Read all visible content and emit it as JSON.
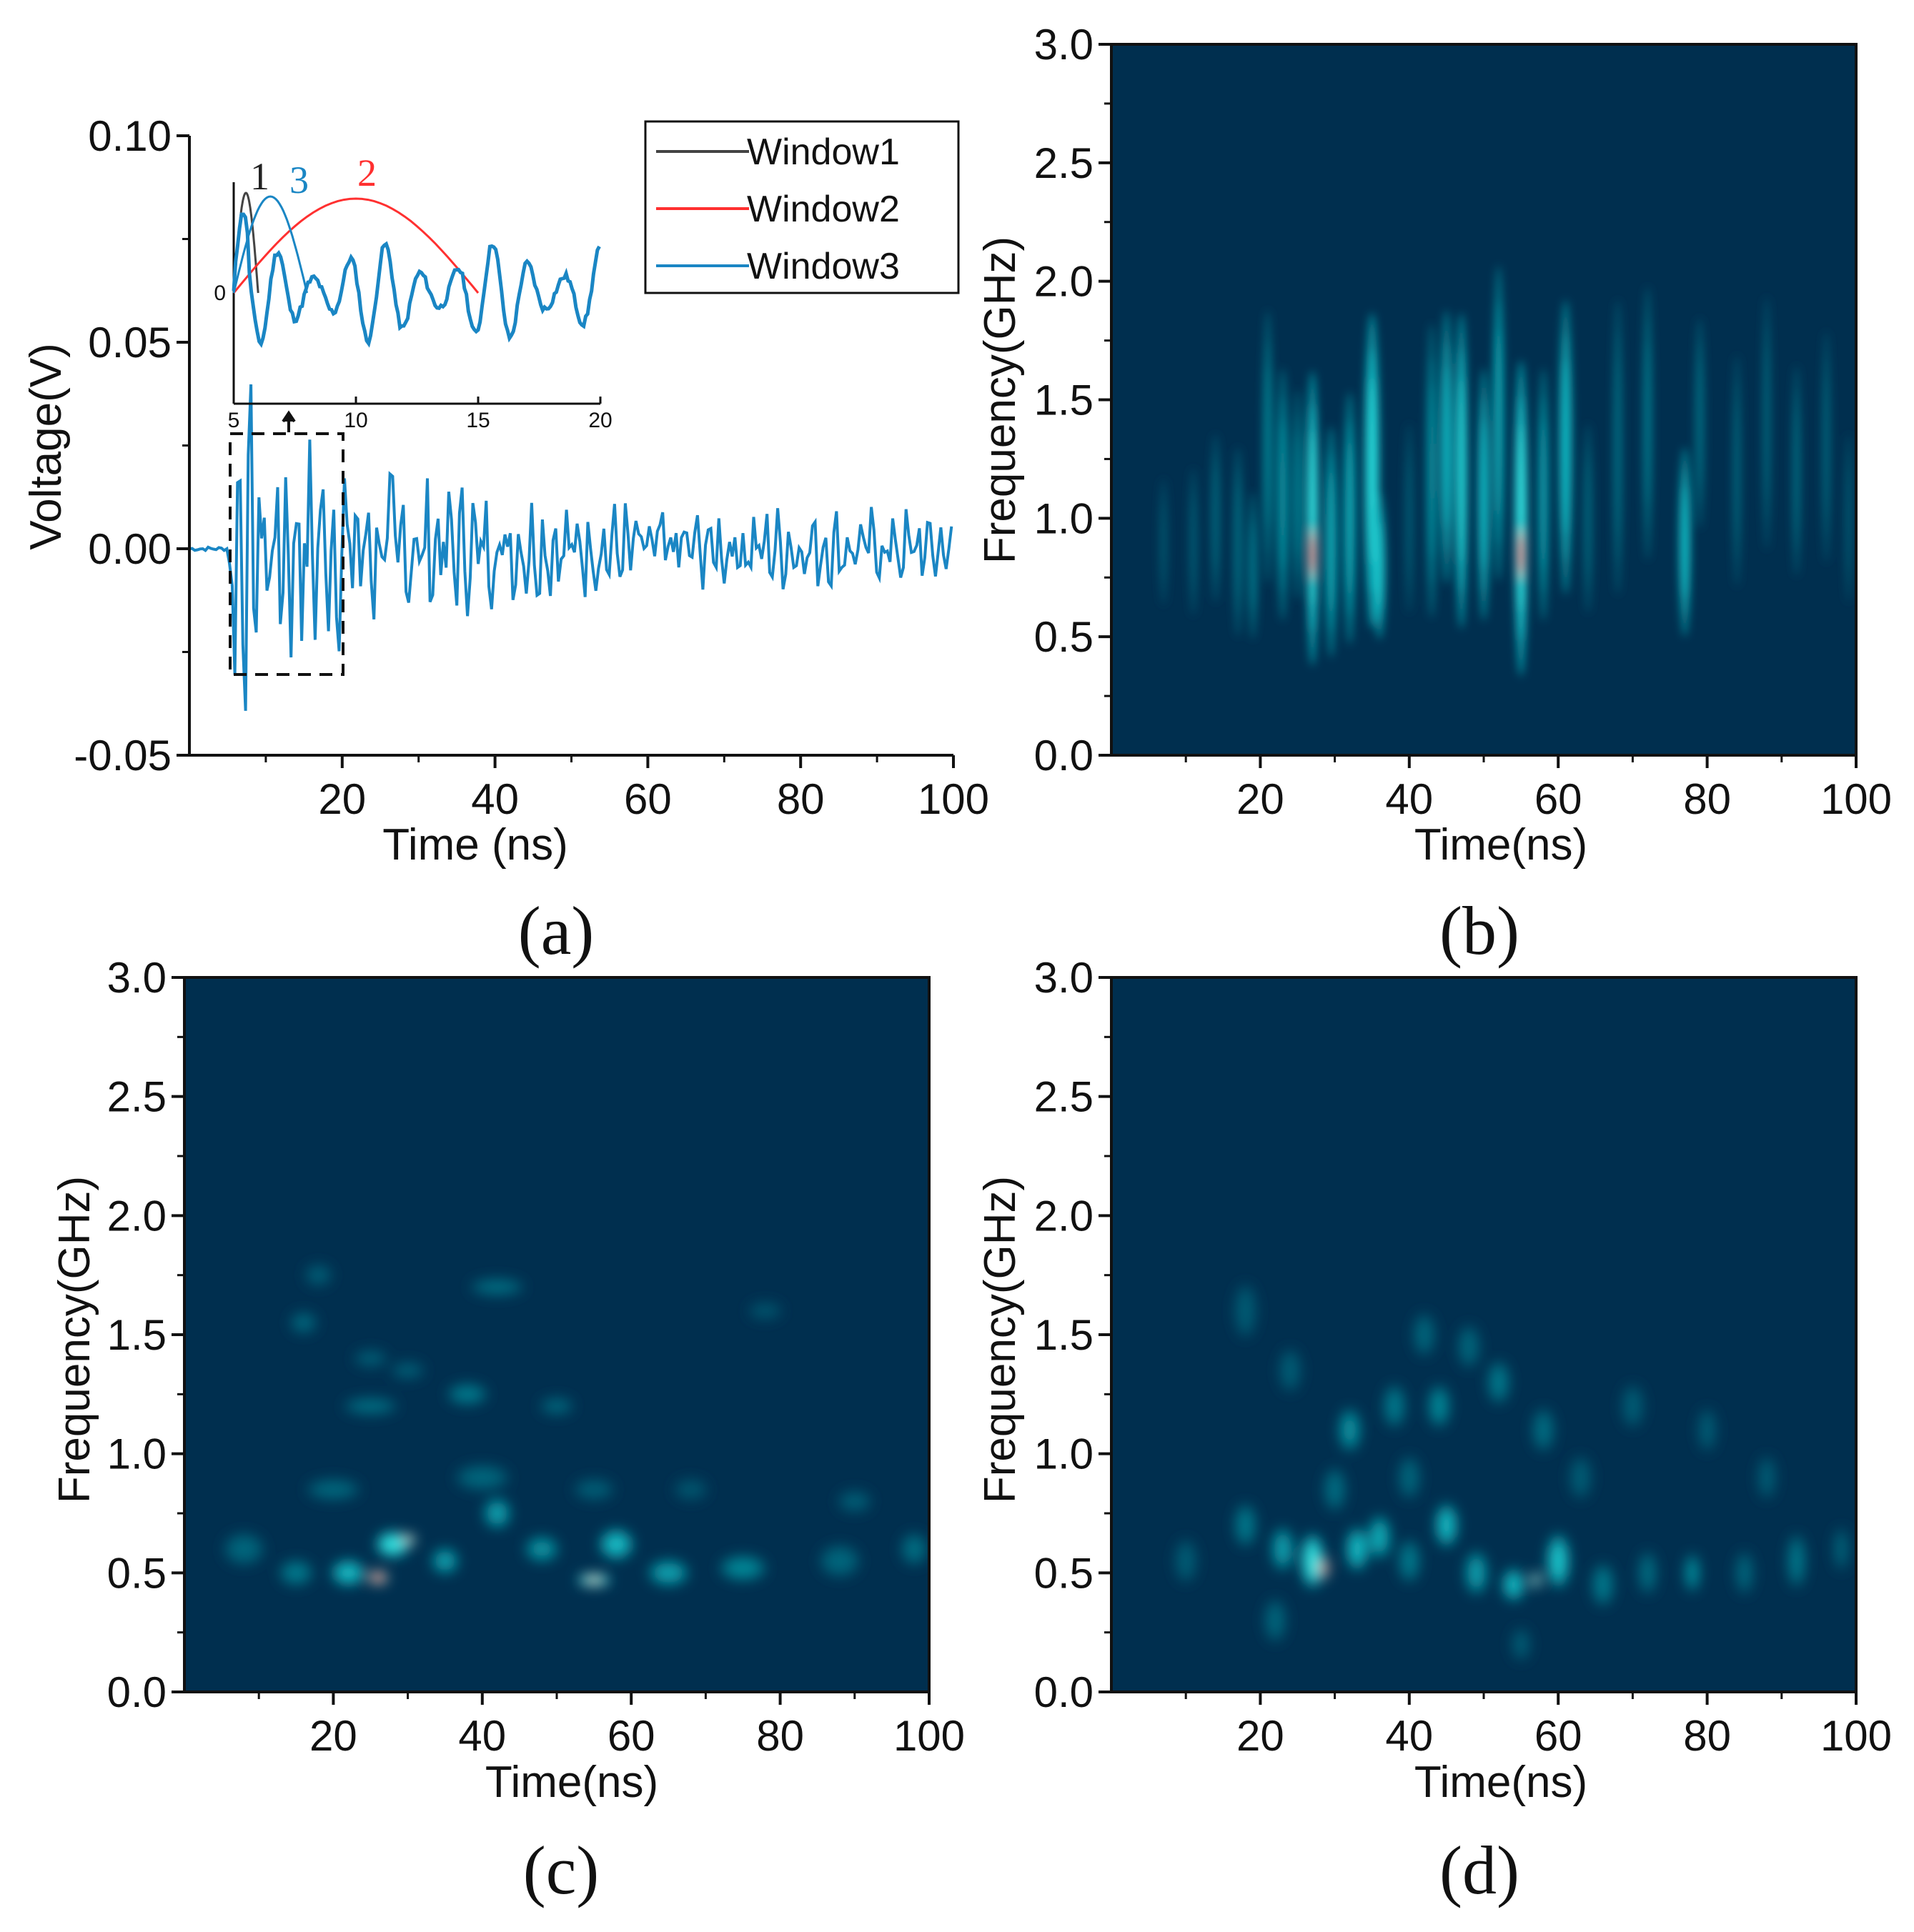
{
  "colors": {
    "background": "#002f4f",
    "glow": "#1bd3d8",
    "hot": "#ff2a1e",
    "warm": "#f6c0a8",
    "window1": "#444444",
    "window2": "#ff3030",
    "window3": "#1a86c4"
  },
  "chart_data": [
    {
      "panel": "(a)",
      "type": "line",
      "xlabel": "Time (ns)",
      "ylabel": "Voltage(V)",
      "xlim": [
        0,
        100
      ],
      "ylim": [
        -0.05,
        0.1
      ],
      "xticks": [
        "20",
        "40",
        "60",
        "80",
        "100"
      ],
      "yticks": [
        "-0.05",
        "0.00",
        "0.05",
        "0.10"
      ],
      "series": [
        {
          "name": "Window3",
          "description_values": {
            "signal_onset_ns": 5,
            "peak_max_V": 0.04,
            "peak_min_V": -0.04,
            "tail_amplitude_V": 0.01
          }
        }
      ],
      "legend": [
        "Window1",
        "Window2",
        "Window3"
      ],
      "inset": {
        "xlim": [
          5,
          20
        ],
        "xticks": [
          "5",
          "10",
          "15",
          "20"
        ],
        "ytick": "0",
        "window_labels": [
          "1",
          "3",
          "2"
        ],
        "window_ranges_ns": [
          [
            5,
            6
          ],
          [
            5,
            8
          ],
          [
            5,
            15
          ]
        ]
      },
      "dashed_box_x_ns": [
        5,
        20
      ]
    },
    {
      "panel": "(b)",
      "type": "heatmap",
      "xlabel": "Time(ns)",
      "ylabel": "Frequency(GHz)",
      "xlim": [
        0,
        100
      ],
      "ylim": [
        0,
        3.0
      ],
      "xticks": [
        "20",
        "40",
        "60",
        "80",
        "100"
      ],
      "yticks": [
        "0.0",
        "0.5",
        "1.0",
        "1.5",
        "2.0",
        "2.5",
        "3.0"
      ],
      "blobs": [
        {
          "t": 7,
          "f": 0.9,
          "w": 0.7,
          "h": 0.6,
          "v": 0.25
        },
        {
          "t": 11,
          "f": 0.9,
          "w": 0.7,
          "h": 0.7,
          "v": 0.3
        },
        {
          "t": 14,
          "f": 1.0,
          "w": 0.8,
          "h": 0.8,
          "v": 0.35
        },
        {
          "t": 17,
          "f": 0.9,
          "w": 0.8,
          "h": 0.9,
          "v": 0.4
        },
        {
          "t": 19,
          "f": 0.8,
          "w": 0.8,
          "h": 0.7,
          "v": 0.45
        },
        {
          "t": 21,
          "f": 1.3,
          "w": 0.8,
          "h": 1.3,
          "v": 0.5
        },
        {
          "t": 23,
          "f": 1.1,
          "w": 1.0,
          "h": 1.2,
          "v": 0.55
        },
        {
          "t": 25,
          "f": 1.1,
          "w": 0.8,
          "h": 1.0,
          "v": 0.5
        },
        {
          "t": 27,
          "f": 1.0,
          "w": 1.0,
          "h": 1.4,
          "v": 0.85
        },
        {
          "t": 27,
          "f": 0.85,
          "w": 0.3,
          "h": 0.35,
          "v": 1.0
        },
        {
          "t": 29.5,
          "f": 0.9,
          "w": 1.0,
          "h": 1.1,
          "v": 0.65
        },
        {
          "t": 32,
          "f": 1.0,
          "w": 1.0,
          "h": 1.2,
          "v": 0.65
        },
        {
          "t": 35,
          "f": 1.2,
          "w": 1.3,
          "h": 1.5,
          "v": 0.8
        },
        {
          "t": 36,
          "f": 0.8,
          "w": 1.0,
          "h": 0.7,
          "v": 0.75
        },
        {
          "t": 40,
          "f": 1.0,
          "w": 0.7,
          "h": 0.9,
          "v": 0.3
        },
        {
          "t": 43,
          "f": 1.2,
          "w": 0.9,
          "h": 1.4,
          "v": 0.55
        },
        {
          "t": 45,
          "f": 1.3,
          "w": 1.0,
          "h": 1.3,
          "v": 0.7
        },
        {
          "t": 47,
          "f": 1.2,
          "w": 1.0,
          "h": 1.5,
          "v": 0.8
        },
        {
          "t": 50,
          "f": 1.1,
          "w": 1.0,
          "h": 1.2,
          "v": 0.7
        },
        {
          "t": 52,
          "f": 1.4,
          "w": 0.9,
          "h": 1.5,
          "v": 0.65
        },
        {
          "t": 55,
          "f": 1.0,
          "w": 1.1,
          "h": 1.5,
          "v": 0.85
        },
        {
          "t": 55,
          "f": 0.85,
          "w": 0.3,
          "h": 0.35,
          "v": 1.0
        },
        {
          "t": 58,
          "f": 1.1,
          "w": 0.9,
          "h": 1.2,
          "v": 0.6
        },
        {
          "t": 61,
          "f": 1.3,
          "w": 1.1,
          "h": 1.4,
          "v": 0.7
        },
        {
          "t": 64,
          "f": 1.0,
          "w": 0.8,
          "h": 0.9,
          "v": 0.35
        },
        {
          "t": 68,
          "f": 1.3,
          "w": 0.8,
          "h": 1.4,
          "v": 0.4
        },
        {
          "t": 72,
          "f": 1.4,
          "w": 0.8,
          "h": 1.3,
          "v": 0.45
        },
        {
          "t": 77,
          "f": 0.9,
          "w": 1.0,
          "h": 0.9,
          "v": 0.7
        },
        {
          "t": 79,
          "f": 1.4,
          "w": 0.8,
          "h": 1.0,
          "v": 0.4
        },
        {
          "t": 84,
          "f": 1.2,
          "w": 0.7,
          "h": 1.1,
          "v": 0.35
        },
        {
          "t": 88,
          "f": 1.4,
          "w": 0.7,
          "h": 1.2,
          "v": 0.35
        },
        {
          "t": 92,
          "f": 1.2,
          "w": 0.7,
          "h": 1.0,
          "v": 0.4
        },
        {
          "t": 96,
          "f": 1.3,
          "w": 0.7,
          "h": 1.1,
          "v": 0.35
        },
        {
          "t": 99,
          "f": 1.0,
          "w": 0.6,
          "h": 0.8,
          "v": 0.3
        }
      ]
    },
    {
      "panel": "(c)",
      "type": "heatmap",
      "xlabel": "Time(ns)",
      "ylabel": "Frequency(GHz)",
      "xlim": [
        0,
        100
      ],
      "ylim": [
        0,
        3.0
      ],
      "xticks": [
        "20",
        "40",
        "60",
        "80",
        "100"
      ],
      "yticks": [
        "0.0",
        "0.5",
        "1.0",
        "1.5",
        "2.0",
        "2.5",
        "3.0"
      ],
      "blobs": [
        {
          "t": 8,
          "f": 0.6,
          "w": 6,
          "h": 0.15,
          "v": 0.35
        },
        {
          "t": 15,
          "f": 0.5,
          "w": 5,
          "h": 0.12,
          "v": 0.45
        },
        {
          "t": 22,
          "f": 0.5,
          "w": 5,
          "h": 0.12,
          "v": 0.7
        },
        {
          "t": 26,
          "f": 0.48,
          "w": 3,
          "h": 0.06,
          "v": 1.0
        },
        {
          "t": 28,
          "f": 0.62,
          "w": 5,
          "h": 0.12,
          "v": 0.85
        },
        {
          "t": 30,
          "f": 0.64,
          "w": 2.5,
          "h": 0.05,
          "v": 0.92
        },
        {
          "t": 35,
          "f": 0.55,
          "w": 4,
          "h": 0.12,
          "v": 0.6
        },
        {
          "t": 42,
          "f": 0.75,
          "w": 4,
          "h": 0.14,
          "v": 0.6
        },
        {
          "t": 48,
          "f": 0.6,
          "w": 5,
          "h": 0.12,
          "v": 0.55
        },
        {
          "t": 55,
          "f": 0.47,
          "w": 5,
          "h": 0.06,
          "v": 0.9
        },
        {
          "t": 58,
          "f": 0.62,
          "w": 5,
          "h": 0.14,
          "v": 0.7
        },
        {
          "t": 65,
          "f": 0.5,
          "w": 6,
          "h": 0.12,
          "v": 0.6
        },
        {
          "t": 75,
          "f": 0.52,
          "w": 7,
          "h": 0.12,
          "v": 0.5
        },
        {
          "t": 88,
          "f": 0.55,
          "w": 6,
          "h": 0.15,
          "v": 0.35
        },
        {
          "t": 98,
          "f": 0.6,
          "w": 4,
          "h": 0.15,
          "v": 0.4
        },
        {
          "t": 20,
          "f": 0.85,
          "w": 8,
          "h": 0.1,
          "v": 0.35
        },
        {
          "t": 40,
          "f": 0.9,
          "w": 8,
          "h": 0.12,
          "v": 0.35
        },
        {
          "t": 55,
          "f": 0.85,
          "w": 6,
          "h": 0.1,
          "v": 0.3
        },
        {
          "t": 25,
          "f": 1.2,
          "w": 8,
          "h": 0.08,
          "v": 0.4
        },
        {
          "t": 38,
          "f": 1.25,
          "w": 6,
          "h": 0.1,
          "v": 0.45
        },
        {
          "t": 50,
          "f": 1.2,
          "w": 5,
          "h": 0.08,
          "v": 0.35
        },
        {
          "t": 30,
          "f": 1.35,
          "w": 5,
          "h": 0.08,
          "v": 0.3
        },
        {
          "t": 42,
          "f": 1.7,
          "w": 8,
          "h": 0.08,
          "v": 0.4
        },
        {
          "t": 16,
          "f": 1.55,
          "w": 4,
          "h": 0.1,
          "v": 0.35
        },
        {
          "t": 18,
          "f": 1.75,
          "w": 4,
          "h": 0.1,
          "v": 0.3
        },
        {
          "t": 25,
          "f": 1.4,
          "w": 5,
          "h": 0.08,
          "v": 0.3
        },
        {
          "t": 78,
          "f": 1.6,
          "w": 5,
          "h": 0.08,
          "v": 0.25
        },
        {
          "t": 90,
          "f": 0.8,
          "w": 5,
          "h": 0.1,
          "v": 0.3
        },
        {
          "t": 68,
          "f": 0.85,
          "w": 5,
          "h": 0.1,
          "v": 0.25
        }
      ]
    },
    {
      "panel": "(d)",
      "type": "heatmap",
      "xlabel": "Time(ns)",
      "ylabel": "Frequency(GHz)",
      "xlim": [
        0,
        100
      ],
      "ylim": [
        0,
        3.0
      ],
      "xticks": [
        "20",
        "40",
        "60",
        "80",
        "100"
      ],
      "yticks": [
        "0.0",
        "0.5",
        "1.0",
        "1.5",
        "2.0",
        "2.5",
        "3.0"
      ],
      "blobs": [
        {
          "t": 10,
          "f": 0.55,
          "w": 3,
          "h": 0.2,
          "v": 0.3
        },
        {
          "t": 18,
          "f": 0.7,
          "w": 3,
          "h": 0.2,
          "v": 0.45
        },
        {
          "t": 23,
          "f": 0.6,
          "w": 3,
          "h": 0.2,
          "v": 0.6
        },
        {
          "t": 27,
          "f": 0.55,
          "w": 3,
          "h": 0.25,
          "v": 0.85
        },
        {
          "t": 28.5,
          "f": 0.52,
          "w": 1.3,
          "h": 0.1,
          "v": 1.0
        },
        {
          "t": 33,
          "f": 0.6,
          "w": 3,
          "h": 0.2,
          "v": 0.7
        },
        {
          "t": 36,
          "f": 0.65,
          "w": 3,
          "h": 0.2,
          "v": 0.65
        },
        {
          "t": 40,
          "f": 0.55,
          "w": 3,
          "h": 0.2,
          "v": 0.45
        },
        {
          "t": 45,
          "f": 0.7,
          "w": 3,
          "h": 0.2,
          "v": 0.7
        },
        {
          "t": 49,
          "f": 0.5,
          "w": 3,
          "h": 0.2,
          "v": 0.6
        },
        {
          "t": 54,
          "f": 0.45,
          "w": 3,
          "h": 0.15,
          "v": 0.7
        },
        {
          "t": 57,
          "f": 0.47,
          "w": 1.3,
          "h": 0.08,
          "v": 0.88
        },
        {
          "t": 60,
          "f": 0.55,
          "w": 3,
          "h": 0.25,
          "v": 0.75
        },
        {
          "t": 66,
          "f": 0.45,
          "w": 3,
          "h": 0.2,
          "v": 0.45
        },
        {
          "t": 72,
          "f": 0.5,
          "w": 2.5,
          "h": 0.2,
          "v": 0.4
        },
        {
          "t": 78,
          "f": 0.5,
          "w": 2,
          "h": 0.18,
          "v": 0.55
        },
        {
          "t": 85,
          "f": 0.5,
          "w": 2.5,
          "h": 0.2,
          "v": 0.35
        },
        {
          "t": 92,
          "f": 0.55,
          "w": 2.5,
          "h": 0.25,
          "v": 0.45
        },
        {
          "t": 98,
          "f": 0.6,
          "w": 2,
          "h": 0.2,
          "v": 0.35
        },
        {
          "t": 32,
          "f": 1.1,
          "w": 3,
          "h": 0.2,
          "v": 0.55
        },
        {
          "t": 38,
          "f": 1.2,
          "w": 3,
          "h": 0.2,
          "v": 0.45
        },
        {
          "t": 44,
          "f": 1.2,
          "w": 3,
          "h": 0.2,
          "v": 0.5
        },
        {
          "t": 52,
          "f": 1.3,
          "w": 3,
          "h": 0.2,
          "v": 0.45
        },
        {
          "t": 58,
          "f": 1.1,
          "w": 3,
          "h": 0.2,
          "v": 0.4
        },
        {
          "t": 18,
          "f": 1.6,
          "w": 3,
          "h": 0.25,
          "v": 0.3
        },
        {
          "t": 24,
          "f": 1.35,
          "w": 3,
          "h": 0.2,
          "v": 0.3
        },
        {
          "t": 42,
          "f": 1.5,
          "w": 3,
          "h": 0.2,
          "v": 0.35
        },
        {
          "t": 48,
          "f": 1.45,
          "w": 3,
          "h": 0.2,
          "v": 0.35
        },
        {
          "t": 70,
          "f": 1.2,
          "w": 3,
          "h": 0.2,
          "v": 0.3
        },
        {
          "t": 80,
          "f": 1.1,
          "w": 2.5,
          "h": 0.2,
          "v": 0.3
        },
        {
          "t": 30,
          "f": 0.85,
          "w": 3,
          "h": 0.2,
          "v": 0.4
        },
        {
          "t": 40,
          "f": 0.9,
          "w": 3,
          "h": 0.2,
          "v": 0.35
        },
        {
          "t": 63,
          "f": 0.9,
          "w": 3,
          "h": 0.2,
          "v": 0.3
        },
        {
          "t": 88,
          "f": 0.9,
          "w": 2.5,
          "h": 0.2,
          "v": 0.3
        },
        {
          "t": 55,
          "f": 0.2,
          "w": 2.5,
          "h": 0.15,
          "v": 0.3
        },
        {
          "t": 22,
          "f": 0.3,
          "w": 3,
          "h": 0.2,
          "v": 0.35
        }
      ]
    }
  ]
}
